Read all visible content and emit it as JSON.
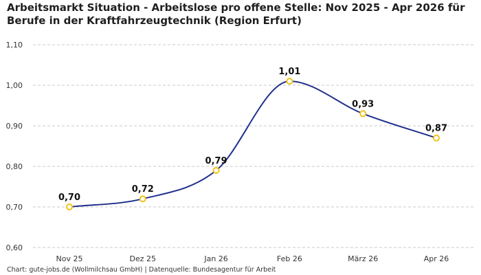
{
  "title": "Arbeitsmarkt Situation - Arbeitslose pro offene Stelle: Nov 2025 - Apr 2026 für Berufe in der Kraftfahrzeugtechnik (Region Erfurt)",
  "footer": "Chart: gute-jobs.de (Wollmilchsau GmbH) | Datenquelle: Bundesagentur für Arbeit",
  "colors": {
    "line": "#1f2f8c",
    "marker_stroke": "#f2c318",
    "marker_fill": "#ffffff",
    "grid": "#c8c8c8"
  },
  "chart_data": {
    "type": "line",
    "categories": [
      "Nov 25",
      "Dez 25",
      "Jan 26",
      "Feb 26",
      "März 26",
      "Apr 26"
    ],
    "values": [
      0.7,
      0.72,
      0.79,
      1.01,
      0.93,
      0.87
    ],
    "data_labels": [
      "0,70",
      "0,72",
      "0,79",
      "1,01",
      "0,93",
      "0,87"
    ],
    "ylim": [
      0.6,
      1.1
    ],
    "yticks": [
      0.6,
      0.7,
      0.8,
      0.9,
      1.0,
      1.1
    ],
    "ytick_labels": [
      "0,60",
      "0,70",
      "0,80",
      "0,90",
      "1,00",
      "1,10"
    ],
    "grid": "horizontal-dashed",
    "smooth": true,
    "xlabel": "",
    "ylabel": ""
  }
}
